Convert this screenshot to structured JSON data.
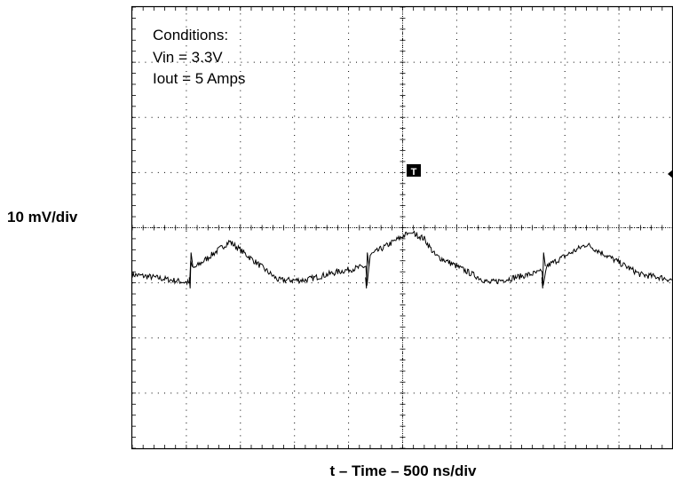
{
  "chart_data": {
    "type": "line",
    "ylabel": "10 mV/div",
    "xlabel": "t – Time – 500 ns/div",
    "conditions": [
      "Conditions:",
      "Vin = 3.3V",
      "Iout = 5 Amps"
    ],
    "trigger_marker": "T",
    "grid": true,
    "x_divisions": 10,
    "y_divisions": 8,
    "xlim": [
      0,
      5000
    ],
    "ylim": [
      -30,
      50
    ],
    "ripple_period_ns": 1630,
    "spike_times_ns": [
      535,
      2165,
      3795
    ],
    "series": [
      {
        "x": [
          0,
          200,
          530,
          540,
          560,
          900,
          1350,
          1600,
          1900,
          2160,
          2170,
          2200,
          2550,
          2600,
          2700,
          2800,
          3300,
          3790,
          3800,
          3830,
          4200,
          4700,
          4880,
          5000
        ],
        "values": [
          1.5,
          1,
          0,
          4,
          2.5,
          7.5,
          0.5,
          0.5,
          2,
          3,
          -0.5,
          5,
          9,
          9,
          8,
          5,
          0,
          2,
          -0.5,
          3,
          7,
          1.5,
          1,
          0.5
        ]
      }
    ]
  }
}
